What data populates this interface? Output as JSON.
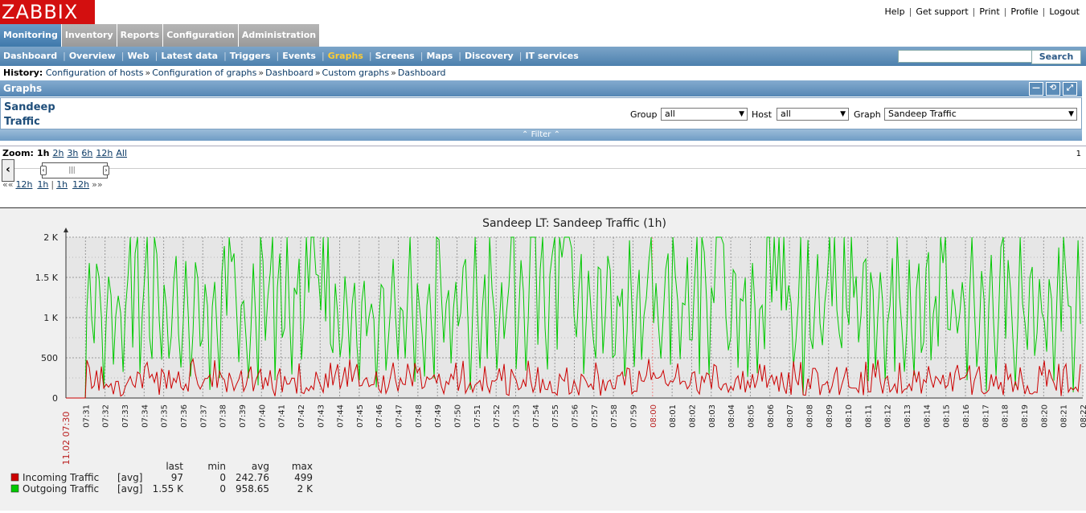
{
  "logo": "ZABBIX",
  "top_links": [
    "Help",
    "Get support",
    "Print",
    "Profile",
    "Logout"
  ],
  "main_menu": [
    {
      "label": "Monitoring",
      "active": true
    },
    {
      "label": "Inventory",
      "active": false
    },
    {
      "label": "Reports",
      "active": false
    },
    {
      "label": "Configuration",
      "active": false
    },
    {
      "label": "Administration",
      "active": false
    }
  ],
  "sub_menu": [
    {
      "label": "Dashboard",
      "current": false
    },
    {
      "label": "Overview",
      "current": false
    },
    {
      "label": "Web",
      "current": false
    },
    {
      "label": "Latest data",
      "current": false
    },
    {
      "label": "Triggers",
      "current": false
    },
    {
      "label": "Events",
      "current": false
    },
    {
      "label": "Graphs",
      "current": true
    },
    {
      "label": "Screens",
      "current": false
    },
    {
      "label": "Maps",
      "current": false
    },
    {
      "label": "Discovery",
      "current": false
    },
    {
      "label": "IT services",
      "current": false
    }
  ],
  "search": {
    "value": "",
    "button": "Search"
  },
  "history": {
    "label": "History:",
    "items": [
      "Configuration of hosts",
      "Configuration of graphs",
      "Dashboard",
      "Custom graphs",
      "Dashboard"
    ]
  },
  "graphs_header": {
    "title": "Graphs"
  },
  "panel": {
    "title": "Sandeep Traffic",
    "group_label": "Group",
    "group_value": "all",
    "host_label": "Host",
    "host_value": "all",
    "graph_label": "Graph",
    "graph_value": "Sandeep Traffic"
  },
  "filter_label": "Filter",
  "zoom": {
    "label": "Zoom:",
    "options": [
      "1h",
      "2h",
      "3h",
      "6h",
      "12h",
      "All"
    ],
    "current": "1h",
    "right_indicator": "1"
  },
  "nav": {
    "back": [
      "12h",
      "1h"
    ],
    "forward": [
      "1h",
      "12h"
    ]
  },
  "colors": {
    "incoming": "#cc0000",
    "outgoing": "#00c800"
  },
  "chart_data": {
    "type": "line",
    "title": "Sandeep LT: Sandeep Traffic (1h)",
    "ylim": [
      0,
      2000
    ],
    "y_ticks": [
      "0",
      "500",
      "1 K",
      "1.5 K",
      "2 K"
    ],
    "x_start_label": "11.02 07:30",
    "x_ticks": [
      "07:31",
      "07:32",
      "07:33",
      "07:34",
      "07:35",
      "07:36",
      "07:37",
      "07:38",
      "07:39",
      "07:40",
      "07:41",
      "07:42",
      "07:43",
      "07:44",
      "07:45",
      "07:46",
      "07:47",
      "07:48",
      "07:49",
      "07:50",
      "07:51",
      "07:52",
      "07:53",
      "07:54",
      "07:55",
      "07:56",
      "07:57",
      "07:58",
      "07:59",
      "08:00",
      "08:01",
      "08:02",
      "08:03",
      "08:04",
      "08:05",
      "08:06",
      "08:07",
      "08:08",
      "08:09",
      "08:10",
      "08:11",
      "08:12",
      "08:13",
      "08:14",
      "08:15",
      "08:16",
      "08:17",
      "08:18",
      "08:19",
      "08:20",
      "08:21",
      "08:22"
    ],
    "x_highlight": "08:00",
    "legend_headers": [
      "last",
      "min",
      "avg",
      "max"
    ],
    "series": [
      {
        "name": "Incoming Traffic",
        "func": "[avg]",
        "last": "97",
        "min": "0",
        "avg": "242.76",
        "max": "499",
        "range": [
          0,
          499
        ]
      },
      {
        "name": "Outgoing Traffic",
        "func": "[avg]",
        "last": "1.55 K",
        "min": "0",
        "avg": "958.65",
        "max": "2 K",
        "range": [
          0,
          2000
        ]
      }
    ]
  }
}
